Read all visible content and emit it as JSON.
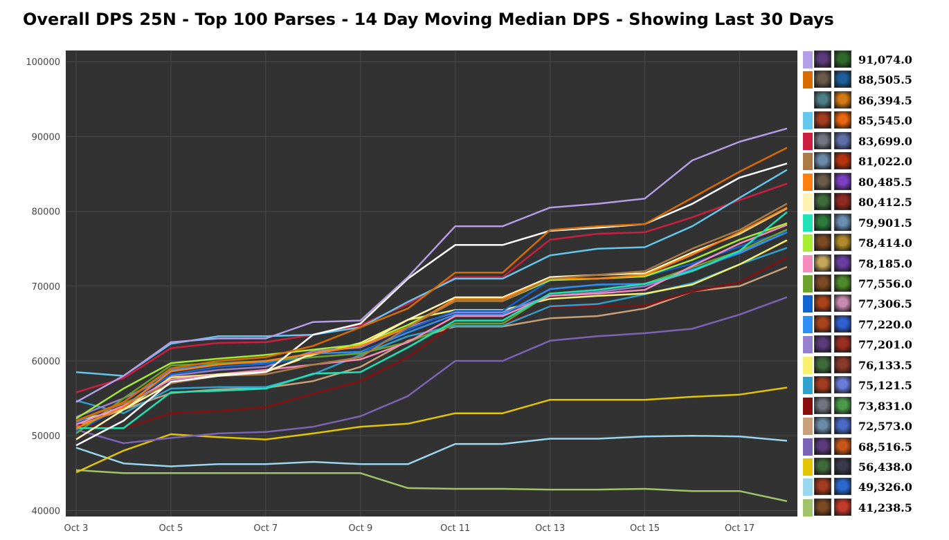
{
  "title": "Overall DPS 25N - Top 100 Parses - 14 Day Moving Median DPS - Showing Last 30 Days",
  "chart_data": {
    "type": "line",
    "title": "Overall DPS 25N - Top 100 Parses - 14 Day Moving Median DPS - Showing Last 30 Days",
    "x": [
      "Oct 3",
      "Oct 4",
      "Oct 5",
      "Oct 6",
      "Oct 7",
      "Oct 8",
      "Oct 9",
      "Oct 10",
      "Oct 11",
      "Oct 12",
      "Oct 13",
      "Oct 14",
      "Oct 15",
      "Oct 16",
      "Oct 17",
      "Oct 18"
    ],
    "x_ticks": [
      "Oct 3",
      "Oct 5",
      "Oct 7",
      "Oct 9",
      "Oct 11",
      "Oct 13",
      "Oct 15",
      "Oct 17"
    ],
    "y_ticks": [
      40000,
      50000,
      60000,
      70000,
      80000,
      90000,
      100000
    ],
    "ylim": [
      39200,
      101500
    ],
    "grid": true,
    "legend_position": "right",
    "series": [
      {
        "color": "#b39ee8",
        "values": [
          54500,
          58000,
          62500,
          63000,
          63000,
          65200,
          65400,
          71200,
          78000,
          78000,
          80500,
          81000,
          81700,
          86800,
          89300,
          91074
        ]
      },
      {
        "color": "#d96b00",
        "values": [
          52000,
          54500,
          59000,
          60000,
          60500,
          62000,
          64500,
          67000,
          71800,
          71800,
          77500,
          78000,
          78300,
          81800,
          85300,
          88505.5
        ]
      },
      {
        "color": "#ffffff",
        "values": [
          48700,
          52000,
          57200,
          58000,
          58500,
          63500,
          65000,
          71000,
          75500,
          75500,
          77400,
          77800,
          78300,
          81000,
          84500,
          86394.5
        ]
      },
      {
        "color": "#63c7ee",
        "values": [
          58500,
          58000,
          62300,
          63300,
          63300,
          63500,
          64500,
          67900,
          71000,
          71000,
          74100,
          75000,
          75200,
          78000,
          81800,
          85545
        ]
      },
      {
        "color": "#cc1f3f",
        "values": [
          55800,
          57700,
          61700,
          62400,
          62500,
          63500,
          64800,
          67600,
          71200,
          71200,
          76200,
          77000,
          77200,
          79200,
          81500,
          83699
        ]
      },
      {
        "color": "#ab7a45",
        "values": [
          52000,
          54300,
          57000,
          58000,
          58200,
          59500,
          60500,
          64500,
          68000,
          68000,
          71000,
          71500,
          72000,
          75000,
          77500,
          81022
        ]
      },
      {
        "color": "#ff7f0e",
        "values": [
          51000,
          53800,
          58600,
          59500,
          60000,
          61000,
          62000,
          64500,
          68300,
          68300,
          71000,
          71000,
          71500,
          74200,
          77200,
          80485.5
        ]
      },
      {
        "color": "#fff3b3",
        "values": [
          49500,
          53500,
          57000,
          58200,
          58500,
          61000,
          62000,
          65500,
          68500,
          68500,
          71200,
          71500,
          71700,
          74500,
          77000,
          80412.5
        ]
      },
      {
        "color": "#1fe3b4",
        "values": [
          51000,
          51000,
          55800,
          56000,
          56300,
          58300,
          58500,
          61800,
          65400,
          65400,
          69000,
          69500,
          70300,
          72000,
          74700,
          79901.5
        ]
      },
      {
        "color": "#a6ec30",
        "values": [
          52300,
          56300,
          59700,
          60300,
          60800,
          61500,
          62200,
          64800,
          68000,
          68000,
          70800,
          71000,
          71300,
          73500,
          76200,
          78414
        ]
      },
      {
        "color": "#f88bbd",
        "values": [
          51500,
          54000,
          57500,
          58200,
          58800,
          59500,
          60200,
          62500,
          66000,
          66000,
          68700,
          69000,
          69500,
          72700,
          75700,
          78185
        ]
      },
      {
        "color": "#6aa22b",
        "values": [
          50300,
          55000,
          59400,
          59700,
          60000,
          60500,
          61000,
          62500,
          65000,
          65000,
          69000,
          69500,
          70300,
          72500,
          74700,
          77556
        ]
      },
      {
        "color": "#0f64d2",
        "values": [
          50500,
          54000,
          58200,
          59200,
          59600,
          60500,
          61000,
          64200,
          66700,
          66700,
          70800,
          71000,
          71300,
          73000,
          75300,
          77306.5
        ]
      },
      {
        "color": "#2f8ff5",
        "values": [
          51800,
          54500,
          58800,
          59600,
          59800,
          61000,
          61200,
          63800,
          66200,
          66200,
          69600,
          70200,
          70300,
          72200,
          74400,
          77220
        ]
      },
      {
        "color": "#9580cf",
        "values": [
          52500,
          55000,
          58000,
          58800,
          59200,
          61300,
          61800,
          64500,
          66500,
          66500,
          68700,
          69200,
          70000,
          72000,
          74500,
          77201
        ]
      },
      {
        "color": "#f7f06e",
        "values": [
          52000,
          53500,
          57800,
          58200,
          58600,
          60800,
          62400,
          65500,
          66800,
          66800,
          68300,
          68700,
          69000,
          70200,
          72900,
          76133.5
        ]
      },
      {
        "color": "#2ea1cf",
        "values": [
          54700,
          53000,
          56300,
          56500,
          56500,
          58200,
          60800,
          63300,
          64700,
          64700,
          67300,
          67600,
          68900,
          70400,
          72900,
          75121.5
        ]
      },
      {
        "color": "#8b0e0e",
        "values": [
          51500,
          51000,
          53000,
          53300,
          53800,
          55600,
          57300,
          60500,
          65000,
          65000,
          67200,
          67300,
          67400,
          69300,
          70500,
          73831
        ]
      },
      {
        "color": "#c9a07a",
        "values": [
          51300,
          53500,
          55700,
          56200,
          56400,
          57300,
          59200,
          62700,
          64600,
          64600,
          65700,
          66000,
          67000,
          69300,
          70000,
          72573
        ]
      },
      {
        "color": "#7a64b5",
        "values": [
          50800,
          49000,
          49700,
          50300,
          50500,
          51200,
          52600,
          55300,
          60000,
          60000,
          62700,
          63300,
          63700,
          64300,
          66200,
          68516.5
        ]
      },
      {
        "color": "#e3c500",
        "values": [
          45100,
          48000,
          50200,
          49800,
          49500,
          50300,
          51200,
          51600,
          53000,
          53000,
          54800,
          54800,
          54800,
          55200,
          55500,
          56438
        ]
      },
      {
        "color": "#9ad7f0",
        "values": [
          48400,
          46300,
          45900,
          46200,
          46200,
          46500,
          46200,
          46200,
          48900,
          48900,
          49600,
          49600,
          49900,
          50000,
          49900,
          49326
        ]
      },
      {
        "color": "#a1c46a",
        "values": [
          45400,
          45000,
          45000,
          45000,
          45000,
          45000,
          45000,
          43000,
          42900,
          42900,
          42800,
          42800,
          42900,
          42600,
          42600,
          41238.5
        ]
      }
    ]
  },
  "legend": {
    "entries": [
      {
        "value": "91,074.0",
        "swatch": "#b39ee8",
        "icons": [
          "spec-icon-warlock-affliction",
          "spec-icon-nature-shadow"
        ]
      },
      {
        "value": "88,505.5",
        "swatch": "#d96b00",
        "icons": [
          "spec-icon-druid-feral",
          "spec-icon-frost-water"
        ]
      },
      {
        "value": "86,394.5",
        "swatch": "#ffffff",
        "icons": [
          "spec-icon-gear-engineer",
          "spec-icon-fire-skull"
        ]
      },
      {
        "value": "85,545.0",
        "swatch": "#63c7ee",
        "icons": [
          "spec-icon-blade-fire",
          "spec-icon-fireball"
        ]
      },
      {
        "value": "83,699.0",
        "swatch": "#cc1f3f",
        "icons": [
          "spec-icon-helmet",
          "spec-icon-ghost-blue"
        ]
      },
      {
        "value": "81,022.0",
        "swatch": "#ab7a45",
        "icons": [
          "spec-icon-sword",
          "spec-icon-flame-red"
        ]
      },
      {
        "value": "80,485.5",
        "swatch": "#ff7f0e",
        "icons": [
          "spec-icon-druid-feral",
          "spec-icon-arcane-burst"
        ]
      },
      {
        "value": "80,412.5",
        "swatch": "#fff3b3",
        "icons": [
          "spec-icon-dagger-green",
          "spec-icon-axe-red"
        ]
      },
      {
        "value": "79,901.5",
        "swatch": "#1fe3b4",
        "icons": [
          "spec-icon-nature-green",
          "spec-icon-frost-skull"
        ]
      },
      {
        "value": "78,414.0",
        "swatch": "#a6ec30",
        "icons": [
          "spec-icon-bow",
          "spec-icon-golden-beast"
        ]
      },
      {
        "value": "78,185.0",
        "swatch": "#f88bbd",
        "icons": [
          "spec-icon-holy-book",
          "spec-icon-shadow-purple"
        ]
      },
      {
        "value": "77,556.0",
        "swatch": "#6aa22b",
        "icons": [
          "spec-icon-bow",
          "spec-icon-nature-claw"
        ]
      },
      {
        "value": "77,306.5",
        "swatch": "#0f64d2",
        "icons": [
          "spec-icon-shield-red",
          "spec-icon-priest-holy"
        ]
      },
      {
        "value": "77,220.0",
        "swatch": "#2f8ff5",
        "icons": [
          "spec-icon-shield-red",
          "spec-icon-lightning"
        ]
      },
      {
        "value": "77,201.0",
        "swatch": "#9580cf",
        "icons": [
          "spec-icon-warlock-affliction",
          "spec-icon-demon-red"
        ]
      },
      {
        "value": "76,133.5",
        "swatch": "#f7f06e",
        "icons": [
          "spec-icon-dagger-green",
          "spec-icon-rogue-red"
        ]
      },
      {
        "value": "75,121.5",
        "swatch": "#2ea1cf",
        "icons": [
          "spec-icon-blade-fire",
          "spec-icon-frost-bolt"
        ]
      },
      {
        "value": "73,831.0",
        "swatch": "#8b0e0e",
        "icons": [
          "spec-icon-helmet",
          "spec-icon-unholy-green"
        ]
      },
      {
        "value": "72,573.0",
        "swatch": "#c9a07a",
        "icons": [
          "spec-icon-sword",
          "spec-icon-storm-orb"
        ]
      },
      {
        "value": "68,516.5",
        "swatch": "#7a64b5",
        "icons": [
          "spec-icon-warlock-affliction",
          "spec-icon-fire-slash"
        ]
      },
      {
        "value": "56,438.0",
        "swatch": "#e3c500",
        "icons": [
          "spec-icon-dagger-green",
          "spec-icon-dark-hood"
        ]
      },
      {
        "value": "49,326.0",
        "swatch": "#9ad7f0",
        "icons": [
          "spec-icon-blade-fire",
          "spec-icon-water-wave"
        ]
      },
      {
        "value": "41,238.5",
        "swatch": "#a1c46a",
        "icons": [
          "spec-icon-bow",
          "spec-icon-blood-red"
        ]
      }
    ]
  },
  "icon_colors": {
    "spec-icon-warlock-affliction": "#5b3a7a",
    "spec-icon-nature-shadow": "#2f6a2a",
    "spec-icon-druid-feral": "#6b5a4a",
    "spec-icon-frost-water": "#1c5f9a",
    "spec-icon-gear-engineer": "#4e7f86",
    "spec-icon-fire-skull": "#d37a15",
    "spec-icon-blade-fire": "#a23b1f",
    "spec-icon-fireball": "#e8660f",
    "spec-icon-helmet": "#707580",
    "spec-icon-ghost-blue": "#5f6fa8",
    "spec-icon-sword": "#6a8aa8",
    "spec-icon-flame-red": "#b5340f",
    "spec-icon-arcane-burst": "#7c3fc2",
    "spec-icon-dagger-green": "#3e6a3a",
    "spec-icon-axe-red": "#8e2a22",
    "spec-icon-nature-green": "#2b7a3c",
    "spec-icon-frost-skull": "#6a8cb0",
    "spec-icon-bow": "#7a4a22",
    "spec-icon-golden-beast": "#b08a2a",
    "spec-icon-holy-book": "#c4a55a",
    "spec-icon-shadow-purple": "#6a3ea0",
    "spec-icon-nature-claw": "#4f8a2a",
    "spec-icon-shield-red": "#a8431c",
    "spec-icon-priest-holy": "#c98ab0",
    "spec-icon-lightning": "#2f5fd0",
    "spec-icon-demon-red": "#9a2f22",
    "spec-icon-rogue-red": "#8a3a2a",
    "spec-icon-frost-bolt": "#6a7ad8",
    "spec-icon-unholy-green": "#4a9a4a",
    "spec-icon-storm-orb": "#4a6ac8",
    "spec-icon-fire-slash": "#c8561a",
    "spec-icon-dark-hood": "#3a3a4a",
    "spec-icon-water-wave": "#2a6ad0",
    "spec-icon-blood-red": "#c23a2a"
  }
}
